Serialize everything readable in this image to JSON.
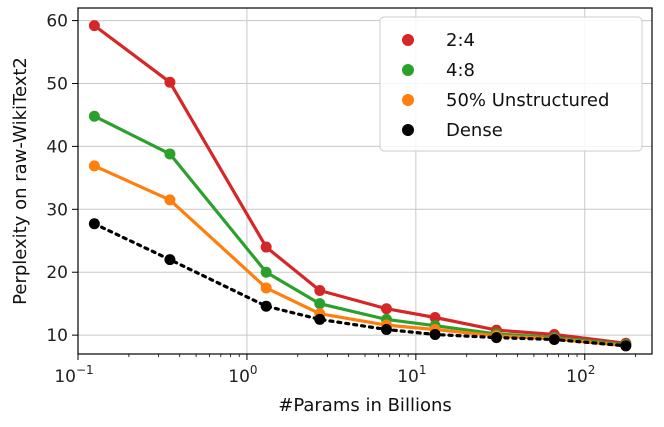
{
  "chart_data": {
    "type": "line",
    "xlabel": "#Params in Billions",
    "ylabel": "Perplexity on raw-WikiText2",
    "xscale": "log",
    "xlim": [
      0.1,
      250
    ],
    "ylim": [
      7,
      62
    ],
    "grid": true,
    "legend_position": "top-right",
    "x_ticks": [
      {
        "base": "10",
        "exp": "−1",
        "value": 0.1
      },
      {
        "base": "10",
        "exp": "0",
        "value": 1
      },
      {
        "base": "10",
        "exp": "1",
        "value": 10
      },
      {
        "base": "10",
        "exp": "2",
        "value": 100
      }
    ],
    "y_ticks": [
      "10",
      "20",
      "30",
      "40",
      "50",
      "60"
    ],
    "x": [
      0.125,
      0.35,
      1.3,
      2.7,
      6.7,
      13,
      30,
      66,
      175
    ],
    "series": [
      {
        "name": "2:4",
        "color": "#d62728",
        "style": "solid",
        "values": [
          59.2,
          50.2,
          24.0,
          17.1,
          14.2,
          12.8,
          10.8,
          10.1,
          8.7
        ]
      },
      {
        "name": "4:8",
        "color": "#2ca02c",
        "style": "solid",
        "values": [
          44.8,
          38.8,
          20.0,
          15.0,
          12.5,
          11.5,
          10.2,
          9.6,
          8.5
        ]
      },
      {
        "name": "50% Unstructured",
        "color": "#ff7f0e",
        "style": "solid",
        "values": [
          36.9,
          31.5,
          17.5,
          13.4,
          11.6,
          10.9,
          9.9,
          9.4,
          8.3
        ]
      },
      {
        "name": "Dense",
        "color": "#000000",
        "style": "dotted",
        "values": [
          27.7,
          22.0,
          14.6,
          12.5,
          10.9,
          10.1,
          9.6,
          9.3,
          8.3
        ]
      }
    ]
  }
}
